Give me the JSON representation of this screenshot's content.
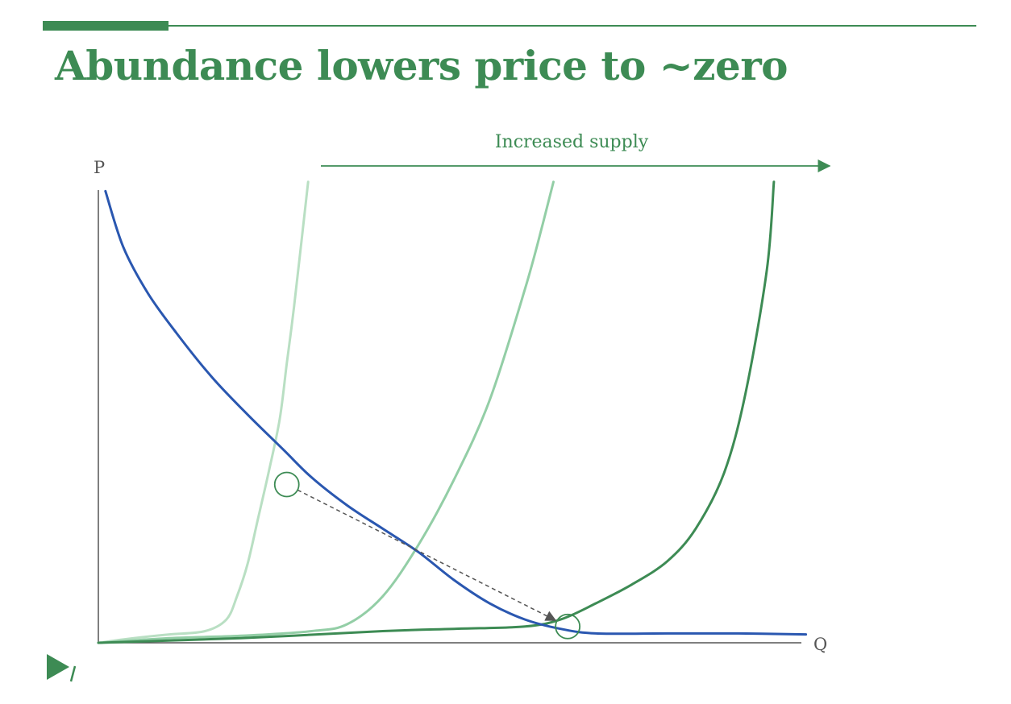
{
  "page": {
    "title": "Abundance lowers price to ~zero",
    "accent_color": "#3d8b54"
  },
  "logo": {
    "icon": "play-slash-logo-icon"
  },
  "chart_data": {
    "type": "line",
    "title": "Abundance lowers price to ~zero",
    "xlabel": "Q",
    "ylabel": "P",
    "xlim": [
      0,
      100
    ],
    "ylim": [
      0,
      100
    ],
    "grid": false,
    "legend": "none",
    "annotation": {
      "text": "Increased supply",
      "arrow_direction": "right"
    },
    "series": [
      {
        "role": "demand",
        "color": "#2a57b0",
        "x": [
          1.0,
          3.5,
          7,
          11,
          16,
          21,
          26,
          30,
          35,
          40,
          45,
          50,
          55,
          60,
          65,
          70,
          80,
          90,
          99.5
        ],
        "y": [
          97,
          85,
          75,
          66.5,
          57,
          49,
          41.5,
          35.5,
          29.5,
          24.5,
          19.5,
          13.5,
          8.5,
          5,
          3,
          2,
          2,
          2,
          1.8
        ]
      },
      {
        "role": "supply-initial",
        "color": "#b9dfc3",
        "x": [
          0,
          5,
          10,
          15,
          18,
          19.5,
          21,
          22.5,
          24,
          25.5,
          26.5,
          27.5,
          29.5
        ],
        "y": [
          0,
          1,
          1.8,
          2.5,
          5,
          10,
          17,
          27,
          37,
          48,
          60,
          72,
          99
        ]
      },
      {
        "role": "supply-shifted",
        "color": "#93cea6",
        "x": [
          0,
          10,
          20,
          30,
          35,
          40,
          45,
          50,
          55,
          60,
          62.5,
          64
        ],
        "y": [
          0,
          1,
          1.5,
          2.5,
          4,
          10,
          21,
          35,
          52,
          76,
          90,
          99
        ]
      },
      {
        "role": "supply-abundant",
        "color": "#3d8b54",
        "x": [
          0,
          20,
          40,
          50,
          60,
          65,
          70,
          75,
          80,
          84,
          88,
          91,
          94,
          95
        ],
        "y": [
          0,
          1,
          2.5,
          3,
          3.5,
          5,
          8.5,
          12.5,
          17.5,
          24.5,
          36.5,
          53.5,
          80,
          99
        ]
      }
    ],
    "equilibria": [
      {
        "x": 26.5,
        "y": 34
      },
      {
        "x": 66,
        "y": 3.5
      }
    ]
  }
}
